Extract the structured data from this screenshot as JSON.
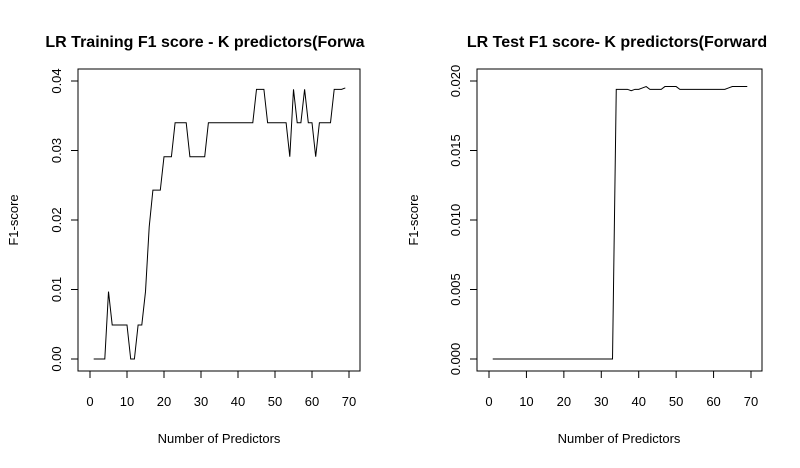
{
  "chart_data": [
    {
      "type": "line",
      "title": "LR Training F1 score - K predictors(Forwa",
      "xlabel": "Number of Predictors",
      "ylabel": "F1-score",
      "xlim": [
        0,
        70
      ],
      "ylim": [
        0,
        0.04
      ],
      "xticks": [
        0,
        10,
        20,
        30,
        40,
        50,
        60,
        70
      ],
      "yticks": [
        0.0,
        0.01,
        0.02,
        0.03,
        0.04
      ],
      "xtick_labels": [
        "0",
        "10",
        "20",
        "30",
        "40",
        "50",
        "60",
        "70"
      ],
      "ytick_labels": [
        "0.00",
        "0.01",
        "0.02",
        "0.03",
        "0.04"
      ],
      "grid": false,
      "series": [
        {
          "x": [
            1,
            2,
            3,
            4,
            5,
            6,
            7,
            8,
            9,
            10,
            11,
            12,
            13,
            14,
            15,
            16,
            17,
            18,
            19,
            20,
            21,
            22,
            23,
            24,
            25,
            26,
            27,
            28,
            29,
            30,
            31,
            32,
            33,
            34,
            35,
            36,
            37,
            38,
            39,
            40,
            41,
            42,
            43,
            44,
            45,
            46,
            47,
            48,
            49,
            50,
            51,
            52,
            53,
            54,
            55,
            56,
            57,
            58,
            59,
            60,
            61,
            62,
            63,
            64,
            65,
            66,
            67,
            68,
            69
          ],
          "y": [
            0,
            0,
            0,
            0,
            0.0097,
            0.0049,
            0.0049,
            0.0049,
            0.0049,
            0.0049,
            0,
            0,
            0.0049,
            0.0049,
            0.0097,
            0.019,
            0.0243,
            0.0243,
            0.0243,
            0.0291,
            0.0291,
            0.0291,
            0.034,
            0.034,
            0.034,
            0.034,
            0.0291,
            0.0291,
            0.0291,
            0.0291,
            0.0291,
            0.034,
            0.034,
            0.034,
            0.034,
            0.034,
            0.034,
            0.034,
            0.034,
            0.034,
            0.034,
            0.034,
            0.034,
            0.034,
            0.0388,
            0.0388,
            0.0388,
            0.034,
            0.034,
            0.034,
            0.034,
            0.034,
            0.034,
            0.0291,
            0.0388,
            0.034,
            0.034,
            0.0388,
            0.034,
            0.034,
            0.0291,
            0.034,
            0.034,
            0.034,
            0.034,
            0.0388,
            0.0388,
            0.0388,
            0.039
          ]
        }
      ]
    },
    {
      "type": "line",
      "title": "LR Test F1 score- K predictors(Forward",
      "xlabel": "Number of Predictors",
      "ylabel": "F1-score",
      "xlim": [
        0,
        70
      ],
      "ylim": [
        0,
        0.02
      ],
      "xticks": [
        0,
        10,
        20,
        30,
        40,
        50,
        60,
        70
      ],
      "yticks": [
        0.0,
        0.005,
        0.01,
        0.015,
        0.02
      ],
      "xtick_labels": [
        "0",
        "10",
        "20",
        "30",
        "40",
        "50",
        "60",
        "70"
      ],
      "ytick_labels": [
        "0.000",
        "0.005",
        "0.010",
        "0.015",
        "0.020"
      ],
      "grid": false,
      "series": [
        {
          "x": [
            1,
            2,
            3,
            4,
            5,
            6,
            7,
            8,
            9,
            10,
            11,
            12,
            13,
            14,
            15,
            16,
            17,
            18,
            19,
            20,
            21,
            22,
            23,
            24,
            25,
            26,
            27,
            28,
            29,
            30,
            31,
            32,
            33,
            34,
            35,
            36,
            37,
            38,
            39,
            40,
            41,
            42,
            43,
            44,
            45,
            46,
            47,
            48,
            49,
            50,
            51,
            52,
            53,
            54,
            55,
            56,
            57,
            58,
            59,
            60,
            61,
            62,
            63,
            64,
            65,
            66,
            67,
            68,
            69
          ],
          "y": [
            0,
            0,
            0,
            0,
            0,
            0,
            0,
            0,
            0,
            0,
            0,
            0,
            0,
            0,
            0,
            0,
            0,
            0,
            0,
            0,
            0,
            0,
            0,
            0,
            0,
            0,
            0,
            0,
            0,
            0,
            0,
            0,
            0,
            0.0194,
            0.0194,
            0.0194,
            0.0194,
            0.0193,
            0.0194,
            0.0194,
            0.0195,
            0.0196,
            0.0194,
            0.0194,
            0.0194,
            0.0194,
            0.0196,
            0.0196,
            0.0196,
            0.0196,
            0.0194,
            0.0194,
            0.0194,
            0.0194,
            0.0194,
            0.0194,
            0.0194,
            0.0194,
            0.0194,
            0.0194,
            0.0194,
            0.0194,
            0.0194,
            0.0195,
            0.0196,
            0.0196,
            0.0196,
            0.0196,
            0.0196
          ]
        }
      ]
    }
  ]
}
